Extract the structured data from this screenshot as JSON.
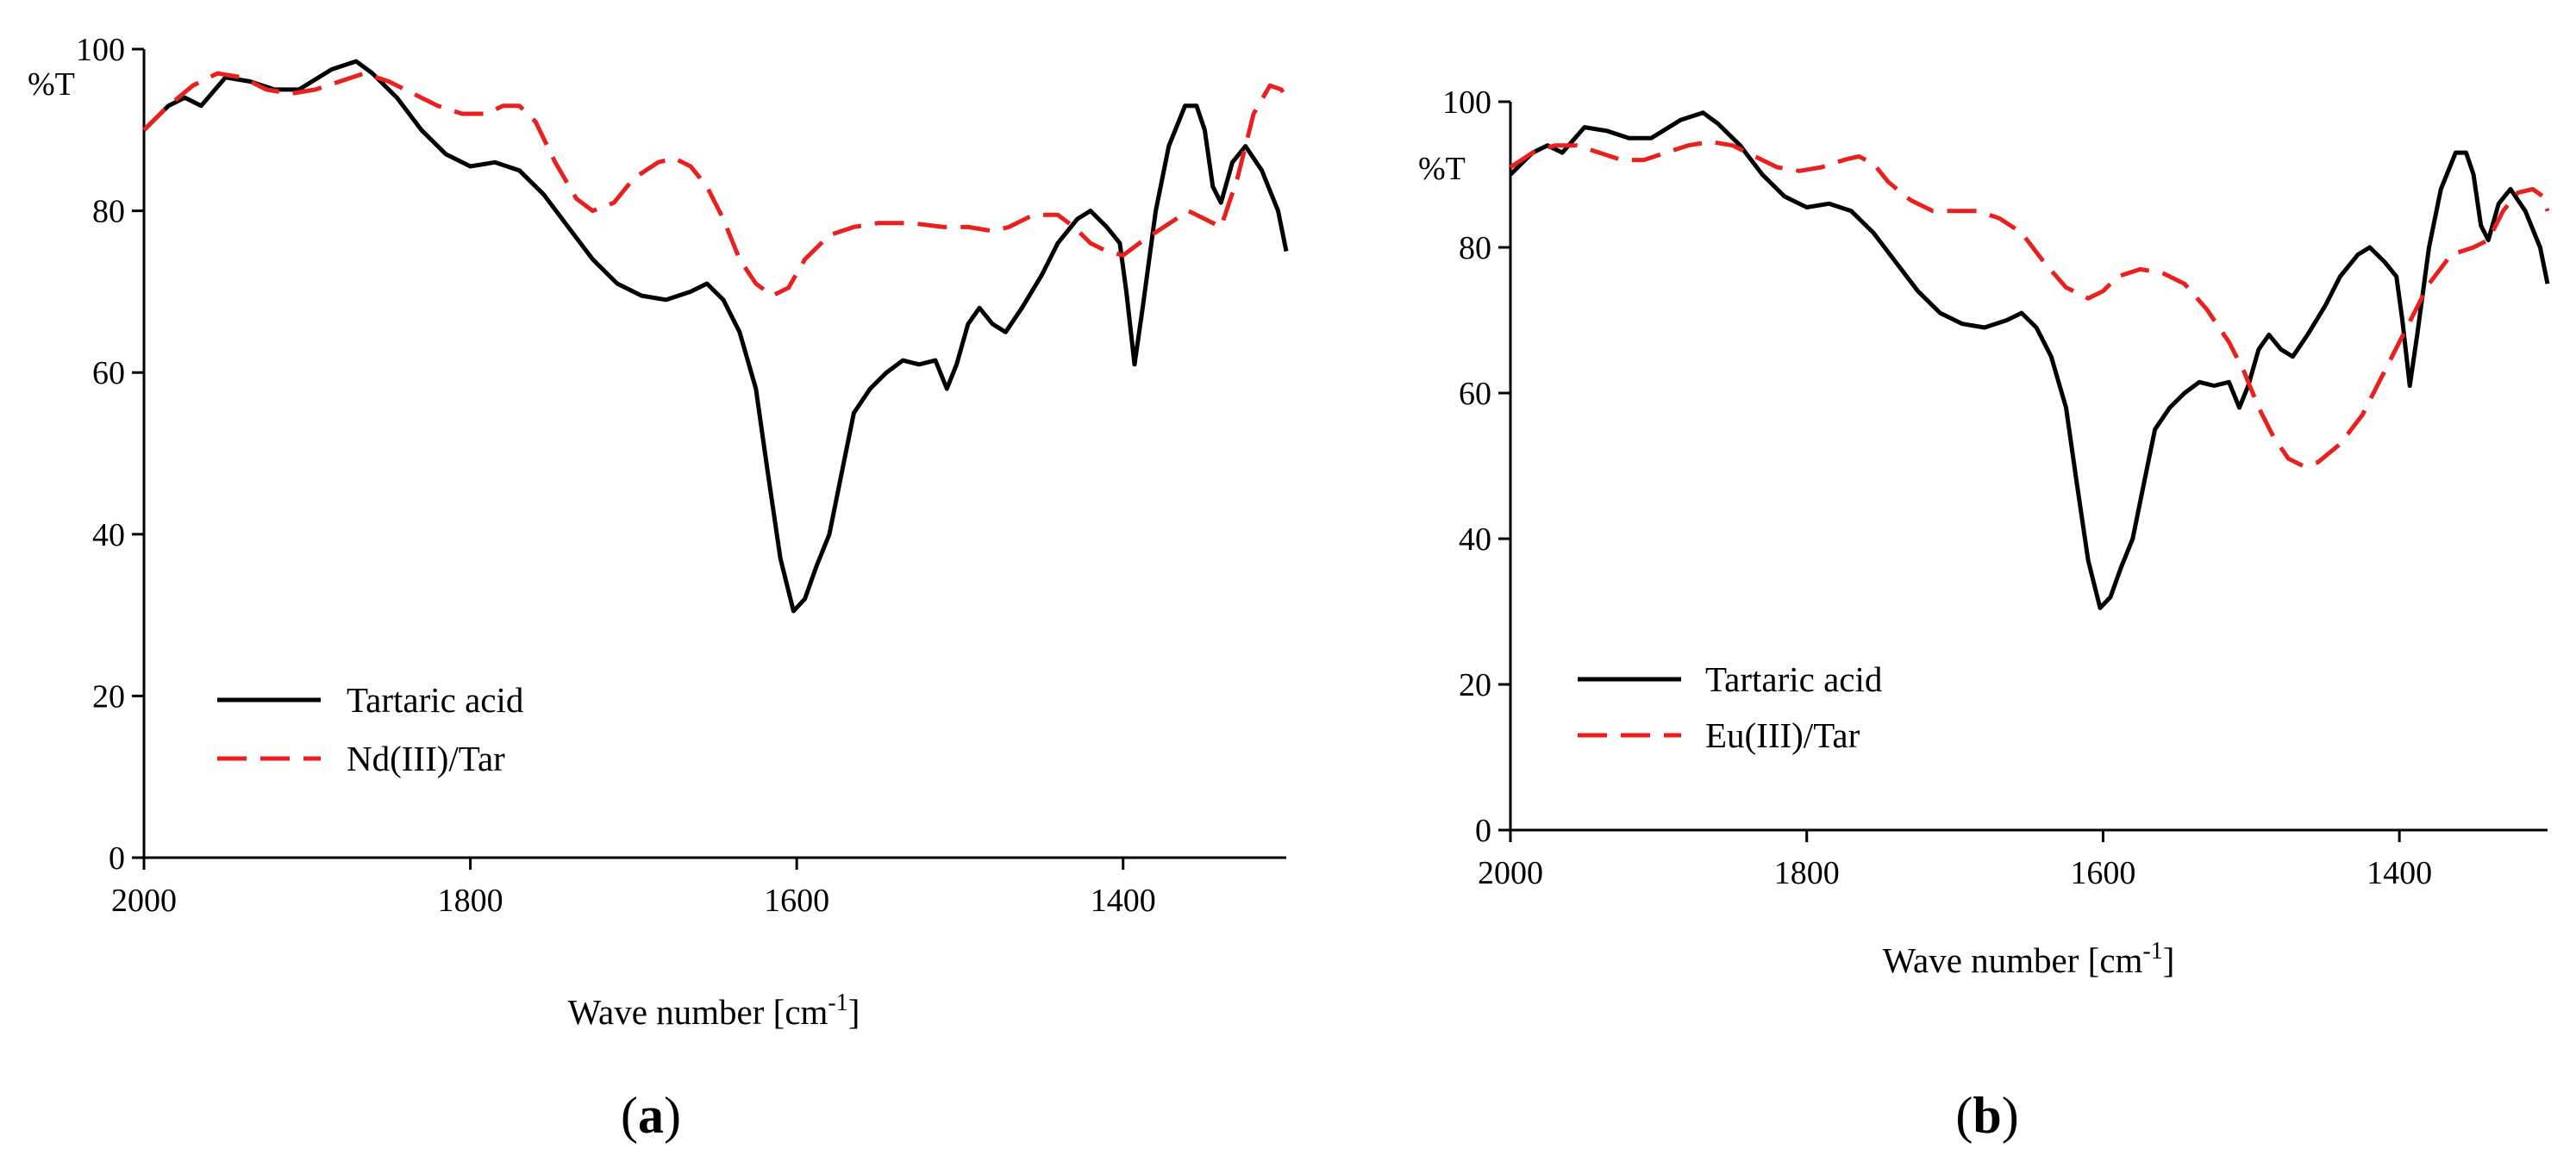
{
  "chart_data": [
    {
      "type": "line",
      "panel": "a",
      "xlabel_main": "Wave number [cm",
      "xlabel_sup": "-1",
      "xlabel_end": "]",
      "ylabel": "%T",
      "xlim": [
        2000,
        1300
      ],
      "ylim": [
        0,
        100
      ],
      "x_ticks": [
        2000,
        1800,
        1600,
        1400
      ],
      "y_ticks": [
        0,
        20,
        40,
        60,
        80,
        100
      ],
      "legend_position": "bottom-left",
      "series": [
        {
          "name": "Tartaric acid",
          "color": "#000000",
          "style": "solid",
          "points": [
            [
              2000,
              90
            ],
            [
              1985,
              93
            ],
            [
              1975,
              94
            ],
            [
              1965,
              93
            ],
            [
              1950,
              96.5
            ],
            [
              1935,
              96
            ],
            [
              1920,
              95
            ],
            [
              1905,
              95
            ],
            [
              1885,
              97.5
            ],
            [
              1870,
              98.5
            ],
            [
              1860,
              97
            ],
            [
              1845,
              94
            ],
            [
              1830,
              90
            ],
            [
              1815,
              87
            ],
            [
              1800,
              85.5
            ],
            [
              1785,
              86
            ],
            [
              1770,
              85
            ],
            [
              1755,
              82
            ],
            [
              1740,
              78
            ],
            [
              1725,
              74
            ],
            [
              1710,
              71
            ],
            [
              1695,
              69.5
            ],
            [
              1680,
              69
            ],
            [
              1665,
              70
            ],
            [
              1655,
              71
            ],
            [
              1645,
              69
            ],
            [
              1635,
              65
            ],
            [
              1625,
              58
            ],
            [
              1618,
              48
            ],
            [
              1610,
              37
            ],
            [
              1602,
              30.5
            ],
            [
              1595,
              32
            ],
            [
              1588,
              36
            ],
            [
              1580,
              40
            ],
            [
              1572,
              48
            ],
            [
              1565,
              55
            ],
            [
              1555,
              58
            ],
            [
              1545,
              60
            ],
            [
              1535,
              61.5
            ],
            [
              1525,
              61
            ],
            [
              1515,
              61.5
            ],
            [
              1508,
              58
            ],
            [
              1502,
              61
            ],
            [
              1495,
              66
            ],
            [
              1488,
              68
            ],
            [
              1480,
              66
            ],
            [
              1472,
              65
            ],
            [
              1462,
              68
            ],
            [
              1450,
              72
            ],
            [
              1440,
              76
            ],
            [
              1428,
              79
            ],
            [
              1420,
              80
            ],
            [
              1410,
              78
            ],
            [
              1402,
              76
            ],
            [
              1398,
              70
            ],
            [
              1393,
              61
            ],
            [
              1388,
              68
            ],
            [
              1380,
              80
            ],
            [
              1372,
              88
            ],
            [
              1362,
              93
            ],
            [
              1355,
              93
            ],
            [
              1350,
              90
            ],
            [
              1345,
              83
            ],
            [
              1340,
              81
            ],
            [
              1333,
              86
            ],
            [
              1325,
              88
            ],
            [
              1315,
              85
            ],
            [
              1305,
              80
            ],
            [
              1300,
              75
            ]
          ]
        },
        {
          "name": "Nd(III)/Tar",
          "color": "#e8201e",
          "style": "dashed",
          "points": [
            [
              2000,
              90
            ],
            [
              1985,
              93
            ],
            [
              1970,
              95.5
            ],
            [
              1955,
              97
            ],
            [
              1940,
              96.5
            ],
            [
              1925,
              95
            ],
            [
              1910,
              94.5
            ],
            [
              1895,
              95
            ],
            [
              1880,
              96
            ],
            [
              1865,
              97
            ],
            [
              1850,
              96
            ],
            [
              1835,
              94.5
            ],
            [
              1820,
              93
            ],
            [
              1805,
              92
            ],
            [
              1790,
              92
            ],
            [
              1780,
              93
            ],
            [
              1770,
              93
            ],
            [
              1760,
              91
            ],
            [
              1748,
              86
            ],
            [
              1735,
              81.5
            ],
            [
              1725,
              80
            ],
            [
              1712,
              81
            ],
            [
              1700,
              84
            ],
            [
              1685,
              86
            ],
            [
              1675,
              86.5
            ],
            [
              1665,
              85.5
            ],
            [
              1655,
              83
            ],
            [
              1645,
              79
            ],
            [
              1635,
              74
            ],
            [
              1625,
              71
            ],
            [
              1615,
              69.5
            ],
            [
              1605,
              70.5
            ],
            [
              1595,
              74
            ],
            [
              1580,
              77
            ],
            [
              1565,
              78
            ],
            [
              1550,
              78.5
            ],
            [
              1530,
              78.5
            ],
            [
              1510,
              78
            ],
            [
              1495,
              78
            ],
            [
              1480,
              77.5
            ],
            [
              1470,
              78
            ],
            [
              1455,
              79.5
            ],
            [
              1440,
              79.5
            ],
            [
              1430,
              78
            ],
            [
              1420,
              76
            ],
            [
              1410,
              75
            ],
            [
              1400,
              74.5
            ],
            [
              1390,
              76
            ],
            [
              1375,
              78
            ],
            [
              1360,
              80
            ],
            [
              1350,
              79
            ],
            [
              1340,
              78
            ],
            [
              1330,
              84
            ],
            [
              1320,
              92
            ],
            [
              1310,
              95.5
            ],
            [
              1303,
              95
            ],
            [
              1300,
              94
            ]
          ]
        }
      ]
    },
    {
      "type": "line",
      "panel": "b",
      "xlabel_main": "Wave number [cm",
      "xlabel_sup": "-1",
      "xlabel_end": "]",
      "ylabel": "%T",
      "xlim": [
        2000,
        1300
      ],
      "ylim": [
        0,
        100
      ],
      "x_ticks": [
        2000,
        1800,
        1600,
        1400
      ],
      "y_ticks": [
        0,
        20,
        40,
        60,
        80,
        100
      ],
      "legend_position": "bottom-left",
      "series": [
        {
          "name": "Tartaric acid",
          "color": "#000000",
          "style": "solid",
          "points": [
            [
              2000,
              90
            ],
            [
              1985,
              93
            ],
            [
              1975,
              94
            ],
            [
              1965,
              93
            ],
            [
              1950,
              96.5
            ],
            [
              1935,
              96
            ],
            [
              1920,
              95
            ],
            [
              1905,
              95
            ],
            [
              1885,
              97.5
            ],
            [
              1870,
              98.5
            ],
            [
              1860,
              97
            ],
            [
              1845,
              94
            ],
            [
              1830,
              90
            ],
            [
              1815,
              87
            ],
            [
              1800,
              85.5
            ],
            [
              1785,
              86
            ],
            [
              1770,
              85
            ],
            [
              1755,
              82
            ],
            [
              1740,
              78
            ],
            [
              1725,
              74
            ],
            [
              1710,
              71
            ],
            [
              1695,
              69.5
            ],
            [
              1680,
              69
            ],
            [
              1665,
              70
            ],
            [
              1655,
              71
            ],
            [
              1645,
              69
            ],
            [
              1635,
              65
            ],
            [
              1625,
              58
            ],
            [
              1618,
              48
            ],
            [
              1610,
              37
            ],
            [
              1602,
              30.5
            ],
            [
              1595,
              32
            ],
            [
              1588,
              36
            ],
            [
              1580,
              40
            ],
            [
              1572,
              48
            ],
            [
              1565,
              55
            ],
            [
              1555,
              58
            ],
            [
              1545,
              60
            ],
            [
              1535,
              61.5
            ],
            [
              1525,
              61
            ],
            [
              1515,
              61.5
            ],
            [
              1508,
              58
            ],
            [
              1502,
              61
            ],
            [
              1495,
              66
            ],
            [
              1488,
              68
            ],
            [
              1480,
              66
            ],
            [
              1472,
              65
            ],
            [
              1462,
              68
            ],
            [
              1450,
              72
            ],
            [
              1440,
              76
            ],
            [
              1428,
              79
            ],
            [
              1420,
              80
            ],
            [
              1410,
              78
            ],
            [
              1402,
              76
            ],
            [
              1398,
              70
            ],
            [
              1393,
              61
            ],
            [
              1388,
              68
            ],
            [
              1380,
              80
            ],
            [
              1372,
              88
            ],
            [
              1362,
              93
            ],
            [
              1355,
              93
            ],
            [
              1350,
              90
            ],
            [
              1345,
              83
            ],
            [
              1340,
              81
            ],
            [
              1333,
              86
            ],
            [
              1325,
              88
            ],
            [
              1315,
              85
            ],
            [
              1305,
              80
            ],
            [
              1300,
              75
            ]
          ]
        },
        {
          "name": "Eu(III)/Tar",
          "color": "#e8201e",
          "style": "dashed",
          "points": [
            [
              2000,
              91
            ],
            [
              1985,
              93
            ],
            [
              1970,
              94
            ],
            [
              1955,
              94
            ],
            [
              1940,
              93
            ],
            [
              1925,
              92
            ],
            [
              1910,
              92
            ],
            [
              1895,
              93
            ],
            [
              1880,
              94
            ],
            [
              1865,
              94.5
            ],
            [
              1850,
              94
            ],
            [
              1835,
              92.5
            ],
            [
              1820,
              91
            ],
            [
              1805,
              90.5
            ],
            [
              1790,
              91
            ],
            [
              1775,
              92
            ],
            [
              1765,
              92.5
            ],
            [
              1755,
              91.5
            ],
            [
              1745,
              89
            ],
            [
              1730,
              86.5
            ],
            [
              1715,
              85
            ],
            [
              1700,
              85
            ],
            [
              1685,
              85
            ],
            [
              1670,
              84
            ],
            [
              1655,
              82
            ],
            [
              1640,
              78
            ],
            [
              1625,
              74.5
            ],
            [
              1610,
              73
            ],
            [
              1600,
              74
            ],
            [
              1590,
              76
            ],
            [
              1575,
              77
            ],
            [
              1560,
              76.5
            ],
            [
              1545,
              75
            ],
            [
              1530,
              71.5
            ],
            [
              1515,
              67
            ],
            [
              1505,
              63
            ],
            [
              1495,
              58
            ],
            [
              1485,
              54
            ],
            [
              1475,
              51
            ],
            [
              1465,
              50
            ],
            [
              1455,
              50.5
            ],
            [
              1440,
              53
            ],
            [
              1425,
              57
            ],
            [
              1410,
              63
            ],
            [
              1395,
              69
            ],
            [
              1380,
              75
            ],
            [
              1365,
              79
            ],
            [
              1350,
              80
            ],
            [
              1340,
              81
            ],
            [
              1330,
              85
            ],
            [
              1320,
              87.5
            ],
            [
              1310,
              88
            ],
            [
              1303,
              87
            ],
            [
              1300,
              85
            ]
          ]
        }
      ]
    }
  ]
}
